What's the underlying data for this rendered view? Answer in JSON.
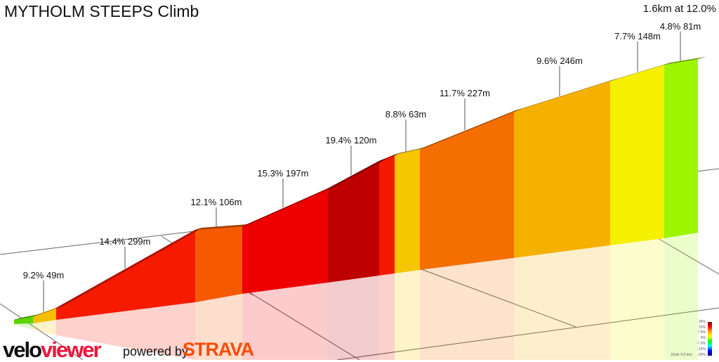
{
  "title": "MYTHOLM STEEPS Climb",
  "summary": "1.6km at 12.0%",
  "chart_data": {
    "type": "area",
    "title": "MYTHOLM STEEPS Climb",
    "total_distance_km": 1.6,
    "average_gradient_pct": 12.0,
    "segments": [
      {
        "label": "",
        "gradient_pct": null,
        "length_m": null,
        "color": "#5cd400"
      },
      {
        "label": "9.2% 49m",
        "gradient_pct": 9.2,
        "length_m": 49,
        "color": "#f5be00"
      },
      {
        "label": "14.4% 299m",
        "gradient_pct": 14.4,
        "length_m": 299,
        "color": "#f51a00"
      },
      {
        "label": "12.1% 106m",
        "gradient_pct": 12.1,
        "length_m": 106,
        "color": "#f55a00"
      },
      {
        "label": "15.3% 197m",
        "gradient_pct": 15.3,
        "length_m": 197,
        "color": "#ee0000"
      },
      {
        "label": "19.4% 120m",
        "gradient_pct": 19.4,
        "length_m": 120,
        "color": "#bf0000"
      },
      {
        "label": "",
        "gradient_pct": null,
        "length_m": null,
        "color": "#f21a00"
      },
      {
        "label": "8.8% 63m",
        "gradient_pct": 8.8,
        "length_m": 63,
        "color": "#f7c600"
      },
      {
        "label": "11.7% 227m",
        "gradient_pct": 11.7,
        "length_m": 227,
        "color": "#f46e00"
      },
      {
        "label": "9.6% 246m",
        "gradient_pct": 9.6,
        "length_m": 246,
        "color": "#f5b000"
      },
      {
        "label": "7.7% 148m",
        "gradient_pct": 7.7,
        "length_m": 148,
        "color": "#f5ef00"
      },
      {
        "label": "4.8% 81m",
        "gradient_pct": 4.8,
        "length_m": 81,
        "color": "#9ef500"
      }
    ],
    "legend": {
      "ticks": [
        "25%",
        "15%",
        "7.5%",
        "0%",
        "-7.5%",
        "-15%",
        "-25%"
      ],
      "grid_note": "(Grid: 0.5 km)"
    }
  },
  "branding": {
    "velo": "velo",
    "viewer": "viewer",
    "powered_by": "powered by",
    "strava": "STRAVA"
  }
}
